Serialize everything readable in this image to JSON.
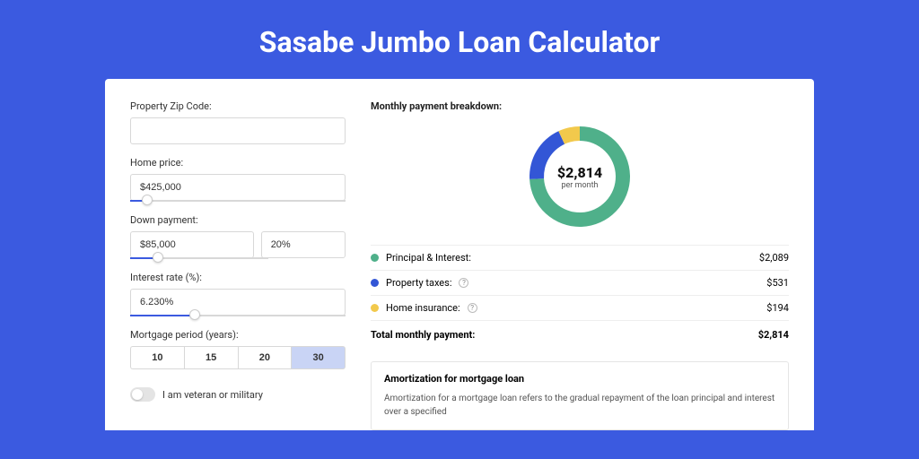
{
  "page": {
    "title": "Sasabe Jumbo Loan Calculator",
    "background_color": "#3b5ae0",
    "card_background": "#ffffff"
  },
  "form": {
    "zip": {
      "label": "Property Zip Code:",
      "value": ""
    },
    "home_price": {
      "label": "Home price:",
      "value": "$425,000",
      "slider_fill_pct": 8,
      "thumb_pct": 8
    },
    "down_payment": {
      "label": "Down payment:",
      "amount": "$85,000",
      "percent": "20%",
      "slider_fill_pct": 20,
      "thumb_pct": 20
    },
    "interest_rate": {
      "label": "Interest rate (%):",
      "value": "6.230%",
      "slider_fill_pct": 30,
      "thumb_pct": 30
    },
    "mortgage_period": {
      "label": "Mortgage period (years):",
      "options": [
        "10",
        "15",
        "20",
        "30"
      ],
      "active_index": 3
    },
    "veteran": {
      "label": "I am veteran or military",
      "checked": false
    }
  },
  "breakdown": {
    "title": "Monthly payment breakdown:",
    "center_amount": "$2,814",
    "center_sub": "per month",
    "donut": {
      "segments": [
        {
          "name": "principal_interest",
          "color": "#4fb08a",
          "start": 0,
          "end": 267
        },
        {
          "name": "property_taxes",
          "color": "#3356d6",
          "start": 267,
          "end": 335
        },
        {
          "name": "home_insurance",
          "color": "#f2c94c",
          "start": 335,
          "end": 360
        }
      ],
      "ring_width": 16,
      "radius": 60
    },
    "items": [
      {
        "label": "Principal & Interest:",
        "amount": "$2,089",
        "color": "#4fb08a",
        "help": false
      },
      {
        "label": "Property taxes:",
        "amount": "$531",
        "color": "#3356d6",
        "help": true
      },
      {
        "label": "Home insurance:",
        "amount": "$194",
        "color": "#f2c94c",
        "help": true
      }
    ],
    "total": {
      "label": "Total monthly payment:",
      "amount": "$2,814"
    }
  },
  "amortization": {
    "title": "Amortization for mortgage loan",
    "text": "Amortization for a mortgage loan refers to the gradual repayment of the loan principal and interest over a specified"
  }
}
